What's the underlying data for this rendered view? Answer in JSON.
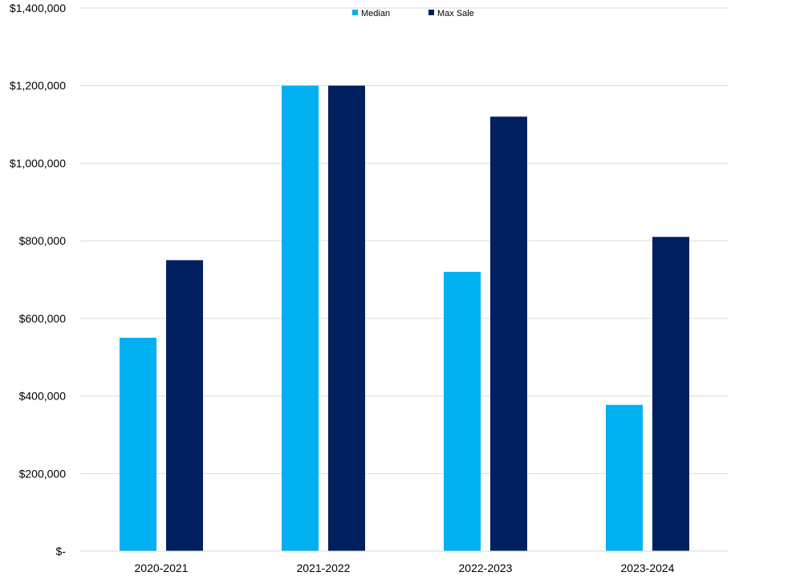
{
  "chart_data": {
    "type": "bar",
    "categories": [
      "2020-2021",
      "2021-2022",
      "2022-2023",
      "2023-2024"
    ],
    "series": [
      {
        "name": "Median",
        "values": [
          550000,
          1200000,
          720000,
          377000
        ],
        "color": "#00B0F0"
      },
      {
        "name": "Max Sale",
        "values": [
          750000,
          1200000,
          1120000,
          810000
        ],
        "color": "#002060"
      }
    ],
    "ylim": [
      0,
      1400000
    ],
    "y_ticks": [
      0,
      200000,
      400000,
      600000,
      800000,
      1000000,
      1200000,
      1400000
    ],
    "y_tick_labels": [
      "$-",
      "$200,000",
      "$400,000",
      "$600,000",
      "$800,000",
      "$1,000,000",
      "$1,200,000",
      "$1,400,000"
    ],
    "grid": true,
    "legend_position": "top-center",
    "title": "",
    "xlabel": "",
    "ylabel": ""
  }
}
